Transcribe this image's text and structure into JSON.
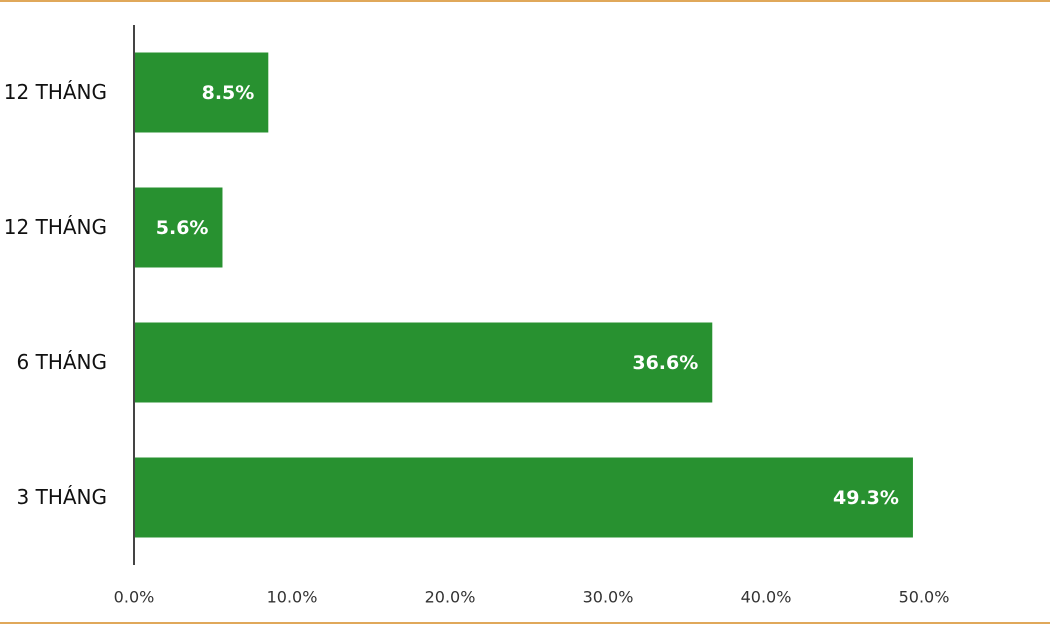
{
  "chart_data": {
    "type": "hbar",
    "categories": [
      "12 THÁNG",
      "12 THÁNG",
      "6 THÁNG",
      "3 THÁNG"
    ],
    "values": [
      8.5,
      5.6,
      36.6,
      49.3
    ],
    "value_labels": [
      "8.5%",
      "5.6%",
      "36.6%",
      "49.3%"
    ],
    "color": "#289130",
    "xlim": [
      0,
      50
    ],
    "xticks": [
      {
        "value": 0,
        "label": "0.0%"
      },
      {
        "value": 10,
        "label": "10.0%"
      },
      {
        "value": 20,
        "label": "20.0%"
      },
      {
        "value": 30,
        "label": "30.0%"
      },
      {
        "value": 40,
        "label": "40.0%"
      },
      {
        "value": 50,
        "label": "50.0%"
      }
    ]
  }
}
